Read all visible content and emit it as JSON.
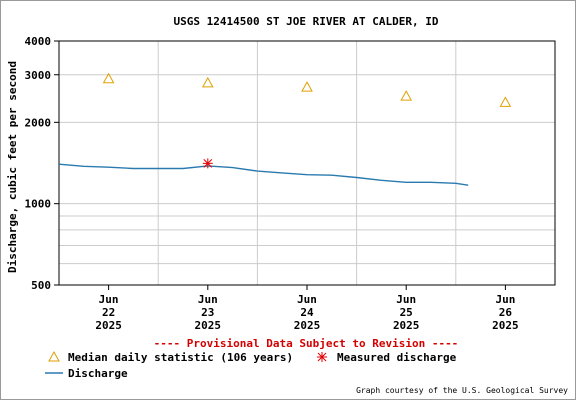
{
  "chart_data": {
    "type": "line",
    "title": "USGS 12414500 ST JOE RIVER AT CALDER, ID",
    "xlabel": "",
    "ylabel": "Discharge, cubic feet per second",
    "y_scale": "log",
    "ylim": [
      500,
      4000
    ],
    "y_ticks": [
      500,
      1000,
      2000,
      3000,
      4000
    ],
    "y_tick_labels": [
      "500",
      "1000",
      "2000",
      "3000",
      "4000"
    ],
    "xlim": [
      "2025-06-21T12:00",
      "2025-06-26T12:00"
    ],
    "x_ticks": [
      {
        "x": "2025-06-22T00:00",
        "label": [
          "Jun",
          "22",
          "2025"
        ]
      },
      {
        "x": "2025-06-23T00:00",
        "label": [
          "Jun",
          "23",
          "2025"
        ]
      },
      {
        "x": "2025-06-24T00:00",
        "label": [
          "Jun",
          "24",
          "2025"
        ]
      },
      {
        "x": "2025-06-25T00:00",
        "label": [
          "Jun",
          "25",
          "2025"
        ]
      },
      {
        "x": "2025-06-26T00:00",
        "label": [
          "Jun",
          "26",
          "2025"
        ]
      }
    ],
    "grid": true,
    "series": [
      {
        "name": "Median daily statistic (106 years)",
        "type": "scatter",
        "marker": "triangle",
        "color": "#e0a000",
        "x": [
          "2025-06-22T00:00",
          "2025-06-23T00:00",
          "2025-06-24T00:00",
          "2025-06-25T00:00",
          "2025-06-26T00:00"
        ],
        "y": [
          2900,
          2800,
          2700,
          2500,
          2370
        ]
      },
      {
        "name": "Measured discharge",
        "type": "scatter",
        "marker": "asterisk",
        "color": "#e00000",
        "x": [
          "2025-06-23T00:00"
        ],
        "y": [
          1410
        ]
      },
      {
        "name": "Discharge",
        "type": "line",
        "color": "#2a7ab0",
        "x": [
          "2025-06-21T12:00",
          "2025-06-21T18:00",
          "2025-06-22T00:00",
          "2025-06-22T06:00",
          "2025-06-22T12:00",
          "2025-06-22T18:00",
          "2025-06-23T00:00",
          "2025-06-23T06:00",
          "2025-06-23T12:00",
          "2025-06-23T18:00",
          "2025-06-24T00:00",
          "2025-06-24T06:00",
          "2025-06-24T12:00",
          "2025-06-24T18:00",
          "2025-06-25T00:00",
          "2025-06-25T06:00",
          "2025-06-25T12:00",
          "2025-06-25T15:00"
        ],
        "y": [
          1400,
          1375,
          1365,
          1350,
          1350,
          1350,
          1380,
          1360,
          1320,
          1300,
          1280,
          1275,
          1250,
          1220,
          1200,
          1200,
          1190,
          1170
        ]
      }
    ]
  },
  "provisional_note": "---- Provisional Data Subject to Revision ----",
  "credit": "Graph courtesy of the U.S. Geological Survey",
  "colors": {
    "median": "#e0a000",
    "measured": "#e00000",
    "discharge": "#2a7ab0",
    "grid": "#cccccc",
    "provisional": "#d40000"
  }
}
